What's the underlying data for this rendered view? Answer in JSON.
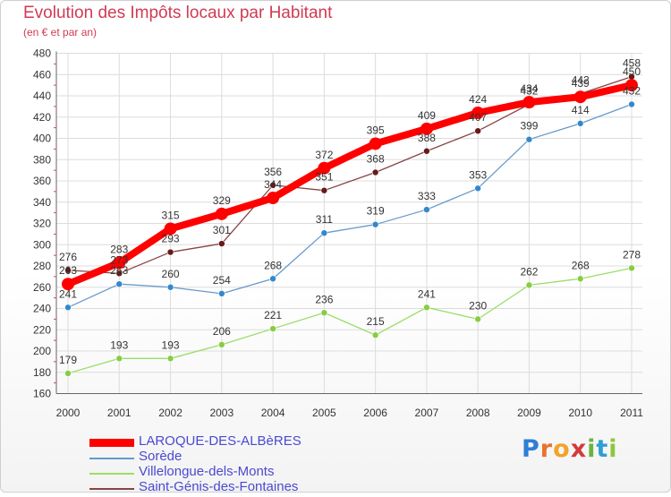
{
  "title": "Evolution des Impôts locaux par Habitant",
  "subtitle": "(en € et par an)",
  "logo": {
    "letters": [
      "P",
      "r",
      "o",
      "x",
      "i",
      "t",
      "i"
    ],
    "colors": [
      "#2e7fd6",
      "#e9722e",
      "#f2a32a",
      "#d43a3a",
      "#6cb33e",
      "#2e9fd6",
      "#8ec63f"
    ]
  },
  "chart_data": {
    "type": "line",
    "title": "Evolution des Impôts locaux par Habitant",
    "subtitle": "(en € et par an)",
    "xlabel": "",
    "ylabel": "",
    "ylim": [
      160,
      480
    ],
    "ytick_step": 20,
    "grid": true,
    "legend_position": "bottom-left",
    "categories": [
      "2000",
      "2001",
      "2002",
      "2003",
      "2004",
      "2005",
      "2006",
      "2007",
      "2008",
      "2009",
      "2010",
      "2011"
    ],
    "series": [
      {
        "name": "LAROQUE-DES-ALBèRES",
        "color": "#ff0000",
        "marker_color": "#ff0000",
        "values": [
          263,
          283,
          315,
          329,
          344,
          372,
          395,
          409,
          424,
          434,
          439,
          450
        ]
      },
      {
        "name": "Sorède",
        "color": "#6699cc",
        "marker_color": "#3388cc",
        "values": [
          241,
          263,
          260,
          254,
          268,
          311,
          319,
          333,
          353,
          399,
          414,
          432
        ]
      },
      {
        "name": "Villelongue-dels-Monts",
        "color": "#99dd66",
        "marker_color": "#88cc44",
        "values": [
          179,
          193,
          193,
          206,
          221,
          236,
          215,
          241,
          230,
          262,
          268,
          278
        ]
      },
      {
        "name": "Saint-Génis-des-Fontaines",
        "color": "#884444",
        "marker_color": "#661a1a",
        "values": [
          276,
          273,
          293,
          301,
          356,
          351,
          368,
          388,
          407,
          432,
          442,
          458
        ]
      }
    ]
  }
}
